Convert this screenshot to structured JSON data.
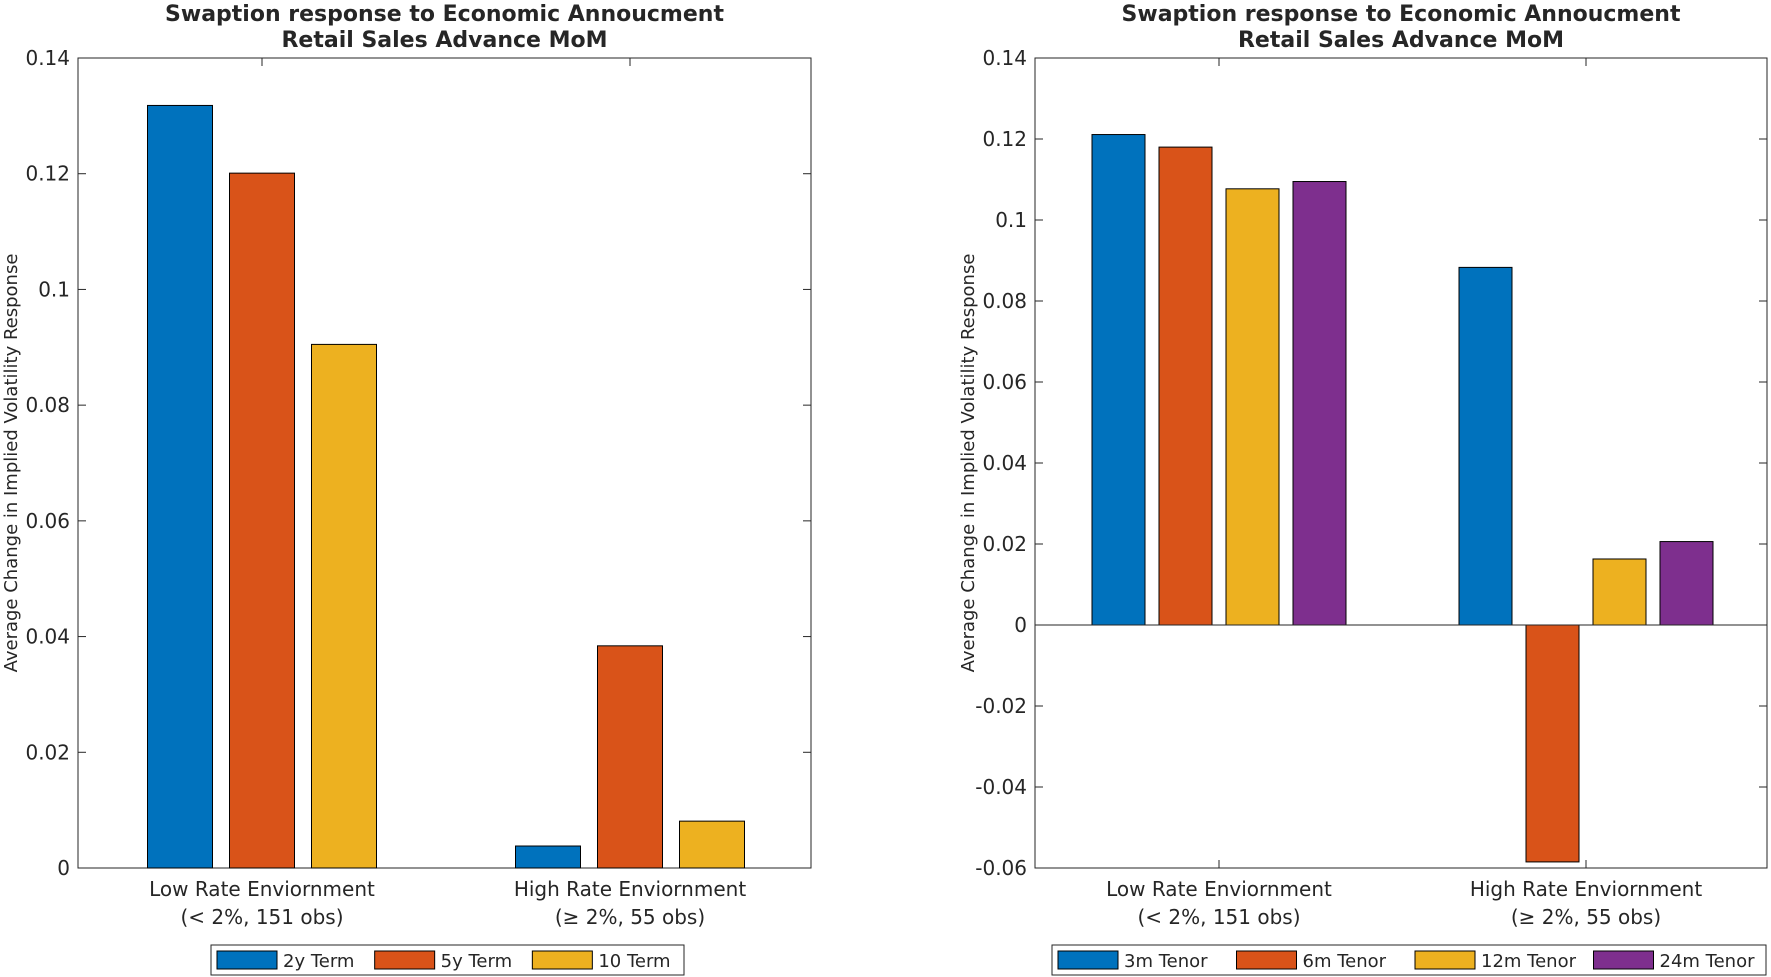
{
  "chart_data": [
    {
      "type": "bar",
      "title": "Swaption response to Economic Annoucment",
      "subtitle": "Retail Sales Advance MoM",
      "xlabel": "",
      "ylabel": "Average Change in Implied Volatility Response",
      "categories": [
        [
          "Low Rate Enviornment",
          "(< 2%, 151 obs)"
        ],
        [
          "High Rate Enviornment",
          "(≥ 2%, 55 obs)"
        ]
      ],
      "ylim": [
        0,
        0.14
      ],
      "yticks": [
        0,
        0.02,
        0.04,
        0.06,
        0.08,
        0.1,
        0.12,
        0.14
      ],
      "ytick_labels": [
        "0",
        "0.02",
        "0.04",
        "0.06",
        "0.08",
        "0.1",
        "0.12",
        "0.14"
      ],
      "grid": false,
      "legend_position": "bottom-outside",
      "series": [
        {
          "name": "2y Term",
          "color": "#0072BD",
          "values": [
            0.1318,
            0.0038
          ]
        },
        {
          "name": "5y Term",
          "color": "#D95319",
          "values": [
            0.1201,
            0.0384
          ]
        },
        {
          "name": "10 Term",
          "color": "#EDB120",
          "values": [
            0.0905,
            0.0081
          ]
        }
      ]
    },
    {
      "type": "bar",
      "title": "Swaption response to Economic Annoucment",
      "subtitle": "Retail Sales Advance MoM",
      "xlabel": "",
      "ylabel": "Average Change in Implied Volatility Response",
      "categories": [
        [
          "Low Rate Enviornment",
          "(< 2%, 151 obs)"
        ],
        [
          "High Rate Enviornment",
          "(≥ 2%, 55 obs)"
        ]
      ],
      "ylim": [
        -0.06,
        0.14
      ],
      "yticks": [
        -0.06,
        -0.04,
        -0.02,
        0,
        0.02,
        0.04,
        0.06,
        0.08,
        0.1,
        0.12,
        0.14
      ],
      "ytick_labels": [
        "-0.06",
        "-0.04",
        "-0.02",
        "0",
        "0.02",
        "0.04",
        "0.06",
        "0.08",
        "0.1",
        "0.12",
        "0.14"
      ],
      "grid": false,
      "legend_position": "bottom-outside",
      "series": [
        {
          "name": "3m Tenor",
          "color": "#0072BD",
          "values": [
            0.1211,
            0.0883
          ]
        },
        {
          "name": "6m Tenor",
          "color": "#D95319",
          "values": [
            0.118,
            -0.0585
          ]
        },
        {
          "name": "12m Tenor",
          "color": "#EDB120",
          "values": [
            0.1077,
            0.0163
          ]
        },
        {
          "name": "24m Tenor",
          "color": "#7E2F8E",
          "values": [
            0.1095,
            0.0206
          ]
        }
      ]
    }
  ]
}
